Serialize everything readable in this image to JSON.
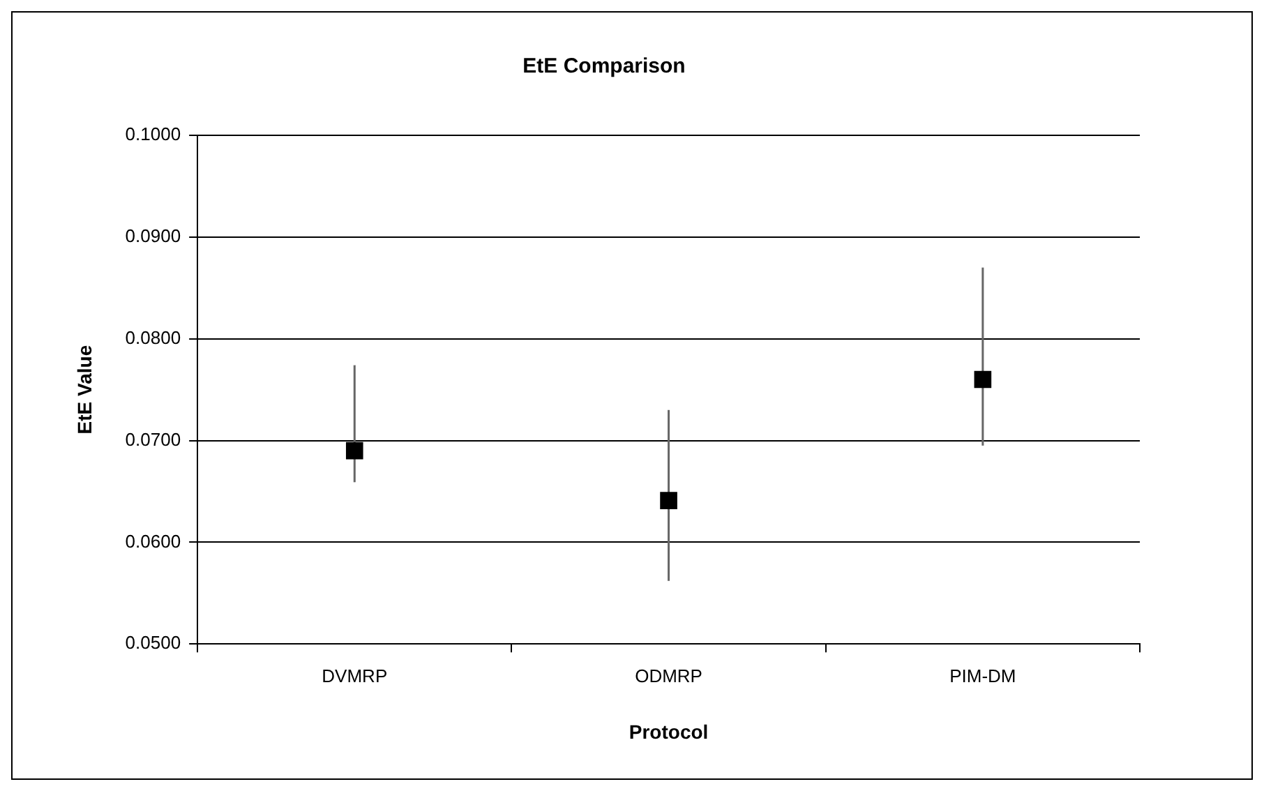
{
  "chart_data": {
    "type": "scatter",
    "title": "EtE Comparison",
    "xlabel": "Protocol",
    "ylabel": "EtE Value",
    "categories": [
      "DVMRP",
      "ODMRP",
      "PIM-DM"
    ],
    "series": [
      {
        "color": "#000000",
        "values": [
          0.069,
          0.0641,
          0.076
        ],
        "errors": [
          [
            0.0659,
            0.0774
          ],
          [
            0.0562,
            0.073
          ],
          [
            0.0695,
            0.087
          ]
        ]
      }
    ],
    "ylim": [
      0.05,
      0.1
    ],
    "yticks": [
      {
        "value": 0.05,
        "label": "0.0500"
      },
      {
        "value": 0.06,
        "label": "0.0600"
      },
      {
        "value": 0.07,
        "label": "0.0700"
      },
      {
        "value": 0.08,
        "label": "0.0800"
      },
      {
        "value": 0.09,
        "label": "0.0900"
      },
      {
        "value": 0.1,
        "label": "0.1000"
      }
    ],
    "grid": "y",
    "legend": false,
    "marker": "square"
  }
}
